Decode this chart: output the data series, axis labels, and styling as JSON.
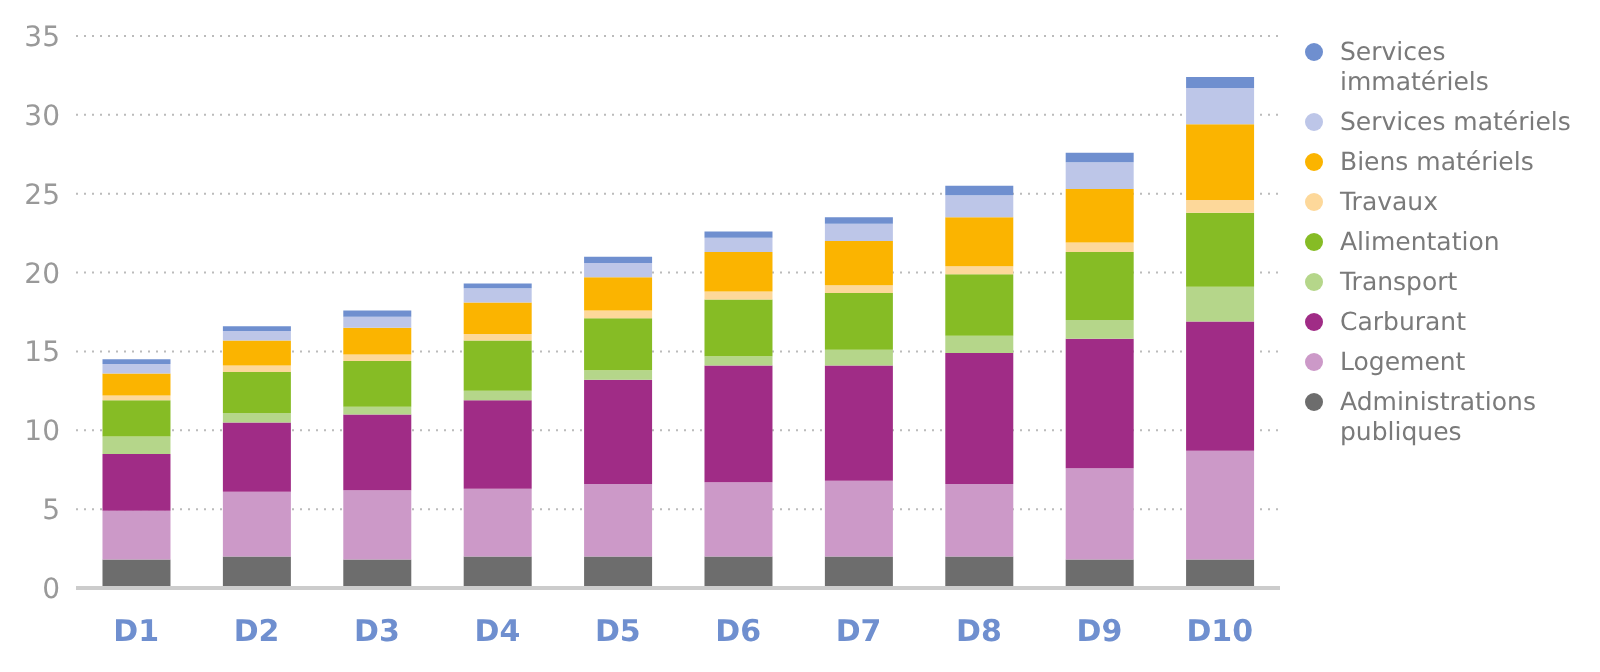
{
  "chart_data": {
    "type": "bar",
    "stacked": true,
    "categories": [
      "D1",
      "D2",
      "D3",
      "D4",
      "D5",
      "D6",
      "D7",
      "D8",
      "D9",
      "D10"
    ],
    "series": [
      {
        "name": "Administrations publiques",
        "color": "#6d6d6d",
        "values": [
          1.8,
          2.0,
          1.8,
          2.0,
          2.0,
          2.0,
          2.0,
          2.0,
          1.8,
          1.8
        ]
      },
      {
        "name": "Logement",
        "color": "#cc99c8",
        "values": [
          3.1,
          4.1,
          4.4,
          4.3,
          4.6,
          4.7,
          4.8,
          4.6,
          5.8,
          6.9
        ]
      },
      {
        "name": "Carburant",
        "color": "#a02c86",
        "values": [
          3.6,
          4.4,
          4.8,
          5.6,
          6.6,
          7.4,
          7.3,
          8.3,
          8.2,
          8.2
        ]
      },
      {
        "name": "Transport",
        "color": "#b5d68a",
        "values": [
          1.1,
          0.6,
          0.5,
          0.6,
          0.6,
          0.6,
          1.0,
          1.1,
          1.2,
          2.2
        ]
      },
      {
        "name": "Alimentation",
        "color": "#86bc25",
        "values": [
          2.3,
          2.6,
          2.9,
          3.2,
          3.3,
          3.6,
          3.6,
          3.9,
          4.3,
          4.7
        ]
      },
      {
        "name": "Travaux",
        "color": "#fdd89a",
        "values": [
          0.3,
          0.4,
          0.4,
          0.4,
          0.5,
          0.5,
          0.5,
          0.5,
          0.6,
          0.8
        ]
      },
      {
        "name": "Biens matériels",
        "color": "#fbb400",
        "values": [
          1.4,
          1.6,
          1.7,
          2.0,
          2.1,
          2.5,
          2.8,
          3.1,
          3.4,
          4.8
        ]
      },
      {
        "name": "Services matériels",
        "color": "#bdc6e8",
        "values": [
          0.6,
          0.6,
          0.7,
          0.9,
          0.9,
          0.9,
          1.1,
          1.4,
          1.7,
          2.3
        ]
      },
      {
        "name": "Services immatériels",
        "color": "#6f8fcf",
        "values": [
          0.3,
          0.3,
          0.4,
          0.3,
          0.4,
          0.4,
          0.4,
          0.6,
          0.6,
          0.7
        ]
      }
    ],
    "ylim": [
      0,
      35
    ],
    "yticks": [
      0,
      5,
      10,
      15,
      20,
      25,
      30,
      35
    ],
    "grid": "y",
    "legend": "right"
  }
}
